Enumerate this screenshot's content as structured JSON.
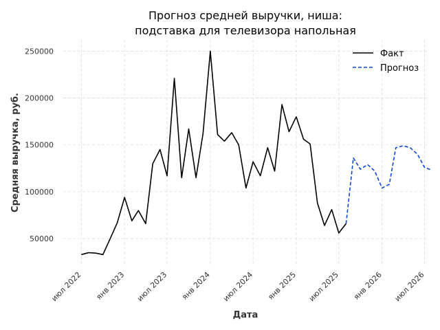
{
  "chart_data": {
    "type": "line",
    "title": [
      "Прогноз средней выручки, ниша:",
      "подставка для телевизора напольная"
    ],
    "xlabel": "Дата",
    "ylabel": "Средняя выручка, руб.",
    "ylim": [
      20000,
      262000
    ],
    "xlim": [
      "2022-04-15",
      "2026-07-20"
    ],
    "grid": true,
    "legend_position": "top-right",
    "x_ticks": [
      {
        "date": "2022-07-01",
        "label": "июл 2022"
      },
      {
        "date": "2023-01-01",
        "label": "янв 2023"
      },
      {
        "date": "2023-07-01",
        "label": "июл 2023"
      },
      {
        "date": "2024-01-01",
        "label": "янв 2024"
      },
      {
        "date": "2024-07-01",
        "label": "июл 2024"
      },
      {
        "date": "2025-01-01",
        "label": "янв 2025"
      },
      {
        "date": "2025-07-01",
        "label": "июл 2025"
      },
      {
        "date": "2026-01-01",
        "label": "янв 2026"
      },
      {
        "date": "2026-07-01",
        "label": "июл 2026"
      }
    ],
    "y_ticks": [
      {
        "value": 50000,
        "label": "50000"
      },
      {
        "value": 100000,
        "label": "100000"
      },
      {
        "value": 150000,
        "label": "150000"
      },
      {
        "value": 200000,
        "label": "200000"
      },
      {
        "value": 250000,
        "label": "250000"
      }
    ],
    "series": [
      {
        "name": "Факт",
        "color": "#000000",
        "dash": "solid",
        "points": [
          [
            "2022-07-01",
            33000
          ],
          [
            "2022-08-01",
            35000
          ],
          [
            "2022-09-01",
            34500
          ],
          [
            "2022-10-01",
            33000
          ],
          [
            "2022-11-01",
            50000
          ],
          [
            "2022-12-01",
            67000
          ],
          [
            "2023-01-01",
            94000
          ],
          [
            "2023-02-01",
            69000
          ],
          [
            "2023-03-01",
            80000
          ],
          [
            "2023-04-01",
            66000
          ],
          [
            "2023-05-01",
            130000
          ],
          [
            "2023-06-01",
            145000
          ],
          [
            "2023-07-01",
            117000
          ],
          [
            "2023-08-01",
            221000
          ],
          [
            "2023-09-01",
            115000
          ],
          [
            "2023-10-01",
            167000
          ],
          [
            "2023-11-01",
            115000
          ],
          [
            "2023-12-01",
            162000
          ],
          [
            "2024-01-01",
            250000
          ],
          [
            "2024-02-01",
            161000
          ],
          [
            "2024-03-01",
            154000
          ],
          [
            "2024-04-01",
            163000
          ],
          [
            "2024-05-01",
            150000
          ],
          [
            "2024-06-01",
            104000
          ],
          [
            "2024-07-01",
            132000
          ],
          [
            "2024-08-01",
            117000
          ],
          [
            "2024-09-01",
            147000
          ],
          [
            "2024-10-01",
            122000
          ],
          [
            "2024-11-01",
            193000
          ],
          [
            "2024-12-01",
            164000
          ],
          [
            "2025-01-01",
            180000
          ],
          [
            "2025-02-01",
            156000
          ],
          [
            "2025-03-01",
            151000
          ],
          [
            "2025-04-01",
            88000
          ],
          [
            "2025-05-01",
            64000
          ],
          [
            "2025-06-01",
            81000
          ],
          [
            "2025-07-01",
            56000
          ],
          [
            "2025-08-01",
            66000
          ]
        ]
      },
      {
        "name": "Прогноз",
        "color": "#0a46d4",
        "dash": "dashed",
        "points": [
          [
            "2025-08-01",
            66000
          ],
          [
            "2025-09-01",
            136000
          ],
          [
            "2025-10-01",
            124000
          ],
          [
            "2025-11-01",
            129000
          ],
          [
            "2025-12-01",
            122000
          ],
          [
            "2026-01-01",
            104000
          ],
          [
            "2026-02-01",
            108000
          ],
          [
            "2026-03-01",
            147000
          ],
          [
            "2026-04-01",
            149000
          ],
          [
            "2026-05-01",
            147000
          ],
          [
            "2026-06-01",
            140000
          ],
          [
            "2026-07-01",
            126000
          ],
          [
            "2026-08-01",
            123000
          ]
        ]
      }
    ]
  }
}
